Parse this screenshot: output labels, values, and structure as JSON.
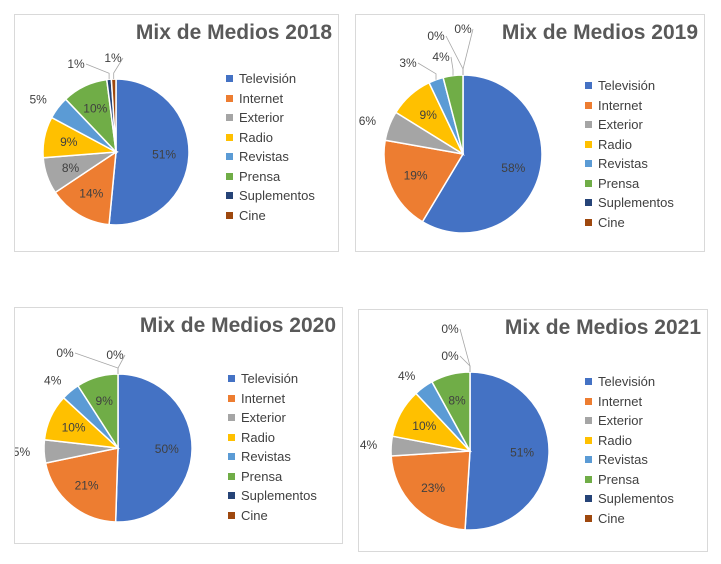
{
  "legend_labels": [
    "Televisión",
    "Internet",
    "Exterior",
    "Radio",
    "Revistas",
    "Prensa",
    "Suplementos",
    "Cine"
  ],
  "colors": {
    "television": "#4472C4",
    "internet": "#ED7D31",
    "exterior": "#A5A5A5",
    "radio": "#FFC000",
    "revistas": "#5B9BD5",
    "prensa": "#70AD47",
    "suplementos": "#264478",
    "cine": "#9E480E"
  },
  "chart_data": [
    {
      "type": "pie",
      "title": "Mix de Medios 2018",
      "categories": [
        "Televisión",
        "Internet",
        "Exterior",
        "Radio",
        "Revistas",
        "Prensa",
        "Suplementos",
        "Cine"
      ],
      "values": [
        51,
        14,
        8,
        9,
        5,
        10,
        1,
        1
      ],
      "labels": [
        "51%",
        "14%",
        "8%",
        "9%",
        "5%",
        "10%",
        "1%",
        "1%"
      ]
    },
    {
      "type": "pie",
      "title": "Mix de Medios 2019",
      "categories": [
        "Televisión",
        "Internet",
        "Exterior",
        "Radio",
        "Revistas",
        "Prensa",
        "Suplementos",
        "Cine"
      ],
      "values": [
        58,
        19,
        6,
        9,
        3,
        4,
        0,
        0
      ],
      "labels": [
        "58%",
        "19%",
        "6%",
        "9%",
        "3%",
        "4%",
        "0%",
        "0%"
      ]
    },
    {
      "type": "pie",
      "title": "Mix de Medios 2020",
      "categories": [
        "Televisión",
        "Internet",
        "Exterior",
        "Radio",
        "Revistas",
        "Prensa",
        "Suplementos",
        "Cine"
      ],
      "values": [
        50,
        21,
        5,
        10,
        4,
        9,
        0,
        0
      ],
      "labels": [
        "50%",
        "21%",
        "5%",
        "10%",
        "4%",
        "9%",
        "0%",
        "0%"
      ]
    },
    {
      "type": "pie",
      "title": "Mix de Medios 2021",
      "categories": [
        "Televisión",
        "Internet",
        "Exterior",
        "Radio",
        "Revistas",
        "Prensa",
        "Suplementos",
        "Cine"
      ],
      "values": [
        51,
        23,
        4,
        10,
        4,
        8,
        0,
        0
      ],
      "labels": [
        "51%",
        "23%",
        "4%",
        "10%",
        "4%",
        "8%",
        "0%",
        "0%"
      ]
    }
  ]
}
